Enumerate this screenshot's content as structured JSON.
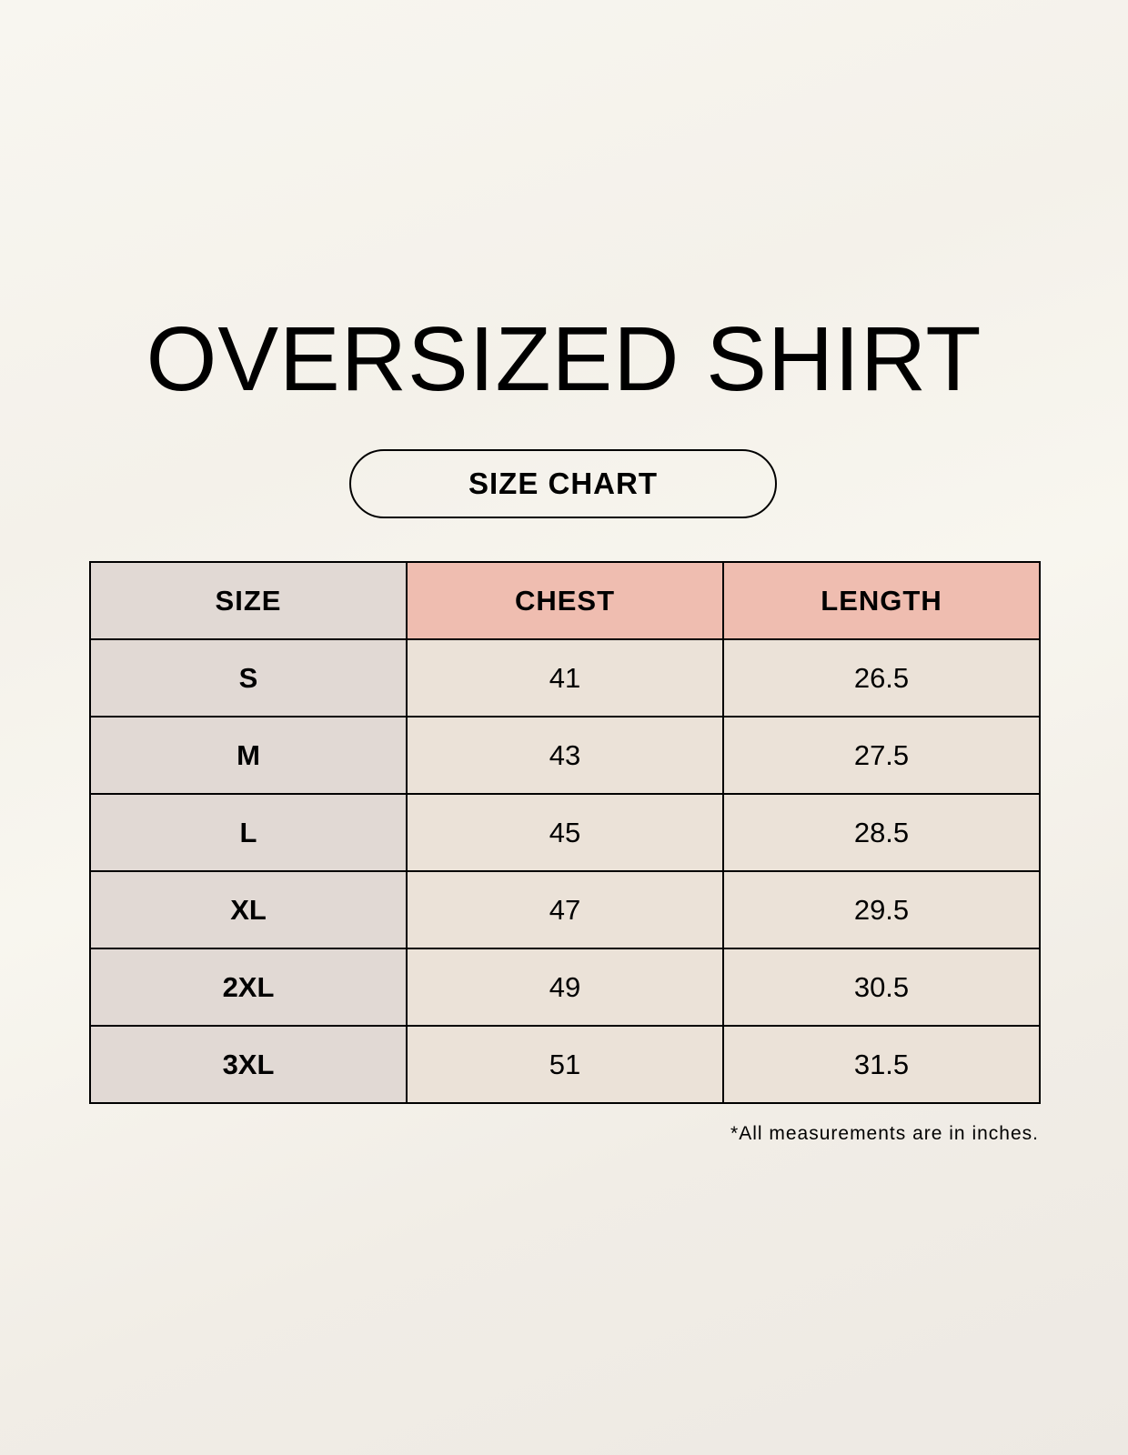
{
  "title": "OVERSIZED SHIRT",
  "subtitle": "SIZE CHART",
  "table": {
    "headers": [
      "SIZE",
      "CHEST",
      "LENGTH"
    ],
    "rows": [
      [
        "S",
        "41",
        "26.5"
      ],
      [
        "M",
        "43",
        "27.5"
      ],
      [
        "L",
        "45",
        "28.5"
      ],
      [
        "XL",
        "47",
        "29.5"
      ],
      [
        "2XL",
        "49",
        "30.5"
      ],
      [
        "3XL",
        "51",
        "31.5"
      ]
    ]
  },
  "note": "*All measurements are in inches.",
  "colors": {
    "header_accent": "#efbdb0",
    "size_column": "#e1d9d4",
    "cell": "#ebe2d8"
  }
}
